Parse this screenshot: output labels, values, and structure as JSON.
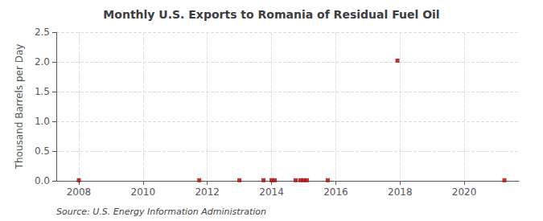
{
  "chart_data": {
    "type": "scatter",
    "title": "Monthly U.S. Exports to Romania of Residual Fuel Oil",
    "ylabel": "Thousand Barrels per Day",
    "annotation": "Source: U.S. Energy Information Administration",
    "x": [
      2008.0,
      2011.75,
      2013.0,
      2013.75,
      2014.0,
      2014.1,
      2014.75,
      2014.9,
      2015.0,
      2015.1,
      2015.75,
      2017.92,
      2021.25
    ],
    "values": [
      0.01,
      0.01,
      0.01,
      0.01,
      0.01,
      0.01,
      0.01,
      0.01,
      0.01,
      0.01,
      0.01,
      2.02,
      0.01
    ],
    "color": "#aa0000",
    "marker": "square",
    "xlim": [
      2007.3,
      2021.7
    ],
    "xticks": [
      2008,
      2010,
      2012,
      2014,
      2016,
      2018,
      2020
    ],
    "ylim": [
      0.0,
      2.5
    ],
    "yticks": [
      {
        "value": 0,
        "label": "0.0"
      },
      0.5,
      {
        "value": 1,
        "label": "1.0"
      },
      1.5,
      {
        "value": 2,
        "label": "2.0"
      },
      2.5
    ],
    "grid": true
  }
}
